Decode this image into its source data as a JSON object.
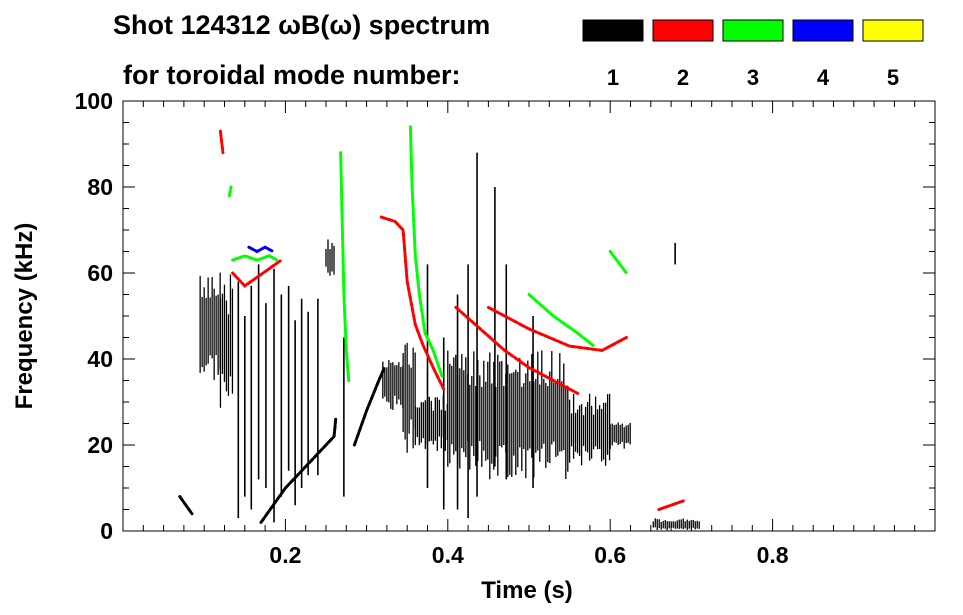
{
  "chart_data": {
    "type": "heatmap",
    "title_line1": "Shot 124312 ωB(ω) spectrum",
    "title_line2": "for toroidal mode number:",
    "xlabel": "Time (s)",
    "ylabel": "Frequency (kHz)",
    "xlim": [
      0.0,
      1.0
    ],
    "ylim": [
      0,
      100
    ],
    "x_ticks": [
      {
        "value": 0.2,
        "label": "0.2"
      },
      {
        "value": 0.4,
        "label": "0.4"
      },
      {
        "value": 0.6,
        "label": "0.6"
      },
      {
        "value": 0.8,
        "label": "0.8"
      }
    ],
    "y_ticks": [
      {
        "value": 0,
        "label": "0"
      },
      {
        "value": 20,
        "label": "20"
      },
      {
        "value": 40,
        "label": "40"
      },
      {
        "value": 60,
        "label": "60"
      },
      {
        "value": 80,
        "label": "80"
      },
      {
        "value": 100,
        "label": "100"
      }
    ],
    "legend": {
      "placement": "top-right",
      "entries": [
        {
          "mode": "1",
          "color": "#000000"
        },
        {
          "mode": "2",
          "color": "#ff0000"
        },
        {
          "mode": "3",
          "color": "#00ff00"
        },
        {
          "mode": "4",
          "color": "#0000ff"
        },
        {
          "mode": "5",
          "color": "#ffff00"
        }
      ]
    },
    "series": [
      {
        "name": "n=1",
        "color": "#000000",
        "blobs": [
          {
            "t": [
              0.095,
              0.12
            ],
            "f": [
              35,
              62
            ]
          },
          {
            "t": [
              0.12,
              0.135
            ],
            "f": [
              28,
              60
            ]
          },
          {
            "t": [
              0.25,
              0.262
            ],
            "f": [
              59,
              68
            ]
          },
          {
            "t": [
              0.32,
              0.345
            ],
            "f": [
              28,
              40
            ]
          },
          {
            "t": [
              0.345,
              0.36
            ],
            "f": [
              18,
              45
            ]
          },
          {
            "t": [
              0.36,
              0.4
            ],
            "f": [
              18,
              32
            ]
          },
          {
            "t": [
              0.4,
              0.55
            ],
            "f": [
              12,
              42
            ]
          },
          {
            "t": [
              0.55,
              0.6
            ],
            "f": [
              15,
              32
            ]
          },
          {
            "t": [
              0.6,
              0.625
            ],
            "f": [
              19,
              26
            ]
          },
          {
            "t": [
              0.653,
              0.71
            ],
            "f": [
              0,
              3
            ]
          }
        ],
        "streaks": [
          {
            "t": 0.142,
            "f": [
              3,
              58
            ]
          },
          {
            "t": 0.15,
            "f": [
              8,
              50
            ]
          },
          {
            "t": 0.158,
            "f": [
              5,
              57
            ]
          },
          {
            "t": 0.167,
            "f": [
              12,
              62
            ]
          },
          {
            "t": 0.176,
            "f": [
              10,
              53
            ]
          },
          {
            "t": 0.186,
            "f": [
              2,
              61
            ]
          },
          {
            "t": 0.195,
            "f": [
              8,
              55
            ]
          },
          {
            "t": 0.204,
            "f": [
              14,
              57
            ]
          },
          {
            "t": 0.212,
            "f": [
              6,
              49
            ]
          },
          {
            "t": 0.22,
            "f": [
              10,
              54
            ]
          },
          {
            "t": 0.228,
            "f": [
              13,
              51
            ]
          },
          {
            "t": 0.24,
            "f": [
              13,
              54
            ]
          },
          {
            "t": 0.272,
            "f": [
              8,
              45
            ]
          },
          {
            "t": 0.375,
            "f": [
              10,
              62
            ]
          },
          {
            "t": 0.395,
            "f": [
              5,
              45
            ]
          },
          {
            "t": 0.412,
            "f": [
              5,
              55
            ]
          },
          {
            "t": 0.425,
            "f": [
              3,
              62
            ]
          },
          {
            "t": 0.436,
            "f": [
              8,
              88
            ]
          },
          {
            "t": 0.458,
            "f": [
              15,
              80
            ]
          },
          {
            "t": 0.472,
            "f": [
              12,
              62
            ]
          },
          {
            "t": 0.505,
            "f": [
              10,
              50
            ]
          },
          {
            "t": 0.68,
            "f": [
              62,
              67
            ]
          }
        ],
        "lines": [
          [
            [
              0.07,
              8
            ],
            [
              0.085,
              4
            ]
          ],
          [
            [
              0.17,
              2
            ],
            [
              0.2,
              10
            ],
            [
              0.23,
              16
            ],
            [
              0.26,
              22
            ],
            [
              0.262,
              26
            ]
          ],
          [
            [
              0.285,
              20
            ],
            [
              0.3,
              28
            ],
            [
              0.315,
              35
            ],
            [
              0.322,
              38
            ]
          ]
        ]
      },
      {
        "name": "n=2",
        "color": "#ff0000",
        "lines": [
          [
            [
              0.12,
              93
            ],
            [
              0.123,
              88
            ]
          ],
          [
            [
              0.135,
              60
            ],
            [
              0.15,
              57
            ],
            [
              0.165,
              59
            ],
            [
              0.18,
              61
            ],
            [
              0.195,
              63
            ]
          ],
          [
            [
              0.318,
              73
            ],
            [
              0.335,
              72
            ],
            [
              0.345,
              70
            ],
            [
              0.35,
              58
            ],
            [
              0.36,
              48
            ],
            [
              0.37,
              43
            ],
            [
              0.382,
              38
            ],
            [
              0.395,
              33
            ]
          ],
          [
            [
              0.41,
              52
            ],
            [
              0.44,
              47
            ],
            [
              0.47,
              42
            ],
            [
              0.5,
              38
            ],
            [
              0.53,
              35
            ],
            [
              0.56,
              32
            ]
          ],
          [
            [
              0.45,
              52
            ],
            [
              0.5,
              47
            ],
            [
              0.55,
              43
            ],
            [
              0.59,
              42
            ],
            [
              0.62,
              45
            ]
          ],
          [
            [
              0.66,
              5
            ],
            [
              0.69,
              7
            ]
          ]
        ]
      },
      {
        "name": "n=3",
        "color": "#00ff00",
        "lines": [
          [
            [
              0.135,
              63
            ],
            [
              0.15,
              64
            ],
            [
              0.165,
              63
            ],
            [
              0.18,
              64
            ],
            [
              0.19,
              63
            ]
          ],
          [
            [
              0.131,
              78
            ],
            [
              0.133,
              80
            ]
          ],
          [
            [
              0.354,
              94
            ],
            [
              0.356,
              80
            ],
            [
              0.36,
              64
            ],
            [
              0.365,
              55
            ],
            [
              0.372,
              46
            ],
            [
              0.382,
              42
            ],
            [
              0.393,
              36
            ]
          ],
          [
            [
              0.268,
              88
            ],
            [
              0.27,
              72
            ],
            [
              0.272,
              55
            ],
            [
              0.275,
              42
            ],
            [
              0.278,
              35
            ]
          ],
          [
            [
              0.5,
              55
            ],
            [
              0.53,
              50
            ],
            [
              0.56,
              46
            ],
            [
              0.58,
              43
            ]
          ],
          [
            [
              0.6,
              65
            ],
            [
              0.62,
              60
            ]
          ]
        ]
      },
      {
        "name": "n=4",
        "color": "#0000ff",
        "lines": [
          [
            [
              0.155,
              66
            ],
            [
              0.165,
              65
            ],
            [
              0.175,
              66
            ],
            [
              0.185,
              65
            ]
          ]
        ]
      },
      {
        "name": "n=5",
        "color": "#ffff00",
        "lines": []
      }
    ]
  }
}
